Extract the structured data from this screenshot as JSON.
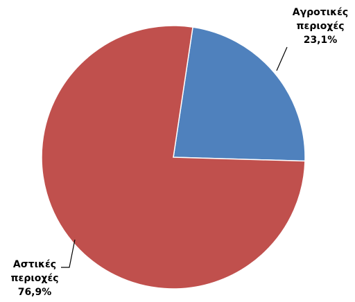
{
  "chart_data": {
    "type": "pie",
    "categories": [
      "Αγροτικές περιοχές",
      "Αστικές περιοχές"
    ],
    "values": [
      23.1,
      76.9
    ],
    "value_labels": [
      "23,1%",
      "76,9%"
    ],
    "colors": [
      "#4f81bd",
      "#c0504d"
    ]
  }
}
